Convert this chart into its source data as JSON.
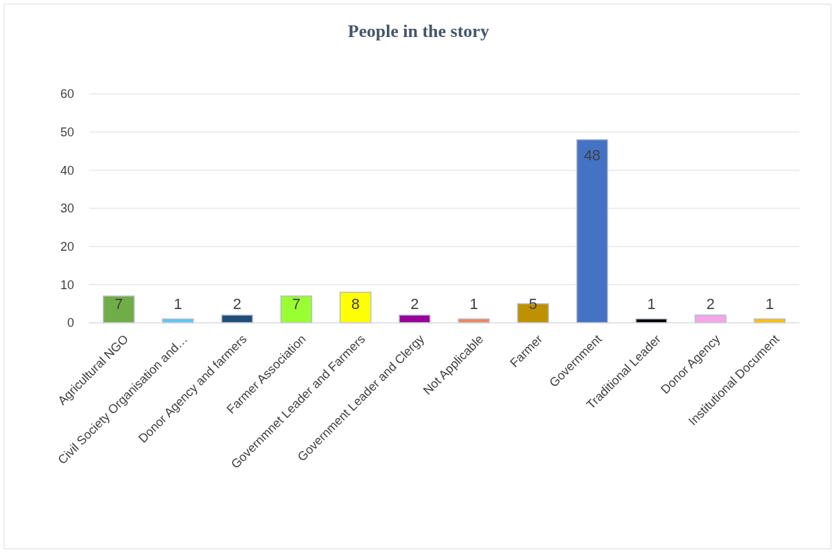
{
  "chart_data": {
    "type": "bar",
    "title": "People in the story",
    "categories": [
      "Agricultural NGO",
      "Civil Society Organisation and…",
      "Donor Agency and farmers",
      "Farmer Association",
      "Governmnet Leader and Farmers",
      "Government Leader and Clergy",
      "Not Applicable",
      "Farmer",
      "Government",
      "Traditional Leader",
      "Donor Agency",
      "Institutional Document"
    ],
    "values": [
      7,
      1,
      2,
      7,
      8,
      2,
      1,
      5,
      48,
      1,
      2,
      1
    ],
    "colors": [
      "#70ad47",
      "#5bc8f5",
      "#1f4e79",
      "#99ff33",
      "#ffff00",
      "#990099",
      "#f4845f",
      "#bf9000",
      "#4472c4",
      "#000000",
      "#f4a6e8",
      "#ffc000"
    ],
    "ylim": [
      0,
      60
    ],
    "yticks": [
      0,
      10,
      20,
      30,
      40,
      50,
      60
    ],
    "grid": "y",
    "data_labels": true
  }
}
